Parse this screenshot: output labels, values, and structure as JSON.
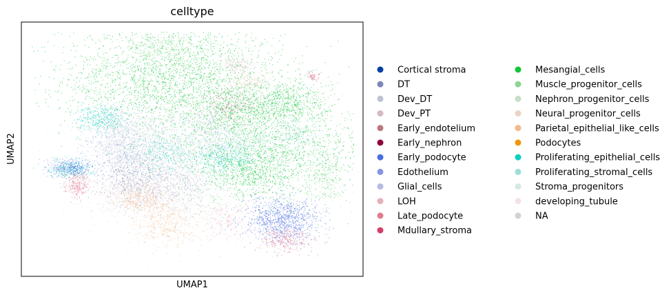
{
  "chart_data": {
    "type": "scatter",
    "title": "celltype",
    "xlabel": "UMAP1",
    "ylabel": "UMAP2",
    "ticks": "none",
    "grid": false,
    "legend_placement": "right, two columns",
    "legend": [
      {
        "name": "Cortical stroma",
        "color": "#023fa5"
      },
      {
        "name": "DT",
        "color": "#7d87b9"
      },
      {
        "name": "Dev_DT",
        "color": "#bec1d4"
      },
      {
        "name": "Dev_PT",
        "color": "#d6bcc0"
      },
      {
        "name": "Early_endotelium",
        "color": "#bb7784"
      },
      {
        "name": "Early_nephron",
        "color": "#8e063b"
      },
      {
        "name": "Early_podocyte",
        "color": "#4a6fe3"
      },
      {
        "name": "Edothelium",
        "color": "#8595e1"
      },
      {
        "name": "Glial_cells",
        "color": "#b5bbe3"
      },
      {
        "name": "LOH",
        "color": "#e6afb9"
      },
      {
        "name": "Late_podocyte",
        "color": "#e07b91"
      },
      {
        "name": "Mdullary_stroma",
        "color": "#d33f6a"
      },
      {
        "name": "Mesangial_cells",
        "color": "#11c638"
      },
      {
        "name": "Muscle_progenitor_cells",
        "color": "#8dd593"
      },
      {
        "name": "Nephron_progenitor_cells",
        "color": "#c6dec7"
      },
      {
        "name": "Neural_progenitor_cells",
        "color": "#ead3c6"
      },
      {
        "name": "Parietal_epithelial_like_cells",
        "color": "#f0b98d"
      },
      {
        "name": "Podocytes",
        "color": "#ef9708"
      },
      {
        "name": "Proliferating_epithelial_cells",
        "color": "#0fcfc0"
      },
      {
        "name": "Proliferating_stromal_cells",
        "color": "#9cded6"
      },
      {
        "name": "Stroma_progenitors",
        "color": "#d5eae7"
      },
      {
        "name": "developing_tubule",
        "color": "#f3e1eb"
      },
      {
        "name": "NA",
        "color": "#d3d3d3"
      }
    ],
    "clusters": [
      {
        "category": "Mesangial_cells",
        "x": 0.44,
        "y": 0.8,
        "sx": 0.17,
        "sy": 0.12,
        "n": 2600
      },
      {
        "category": "Mesangial_cells",
        "x": 0.74,
        "y": 0.49,
        "sx": 0.17,
        "sy": 0.1,
        "n": 1800
      },
      {
        "category": "Mesangial_cells",
        "x": 0.78,
        "y": 0.7,
        "sx": 0.07,
        "sy": 0.05,
        "n": 700
      },
      {
        "category": "Mesangial_cells",
        "x": 0.62,
        "y": 0.66,
        "sx": 0.06,
        "sy": 0.05,
        "n": 400
      },
      {
        "category": "Mesangial_cells",
        "x": 0.68,
        "y": 0.4,
        "sx": 0.07,
        "sy": 0.05,
        "n": 500
      },
      {
        "category": "Muscle_progenitor_cells",
        "x": 0.4,
        "y": 0.93,
        "sx": 0.06,
        "sy": 0.04,
        "n": 300
      },
      {
        "category": "Muscle_progenitor_cells",
        "x": 0.91,
        "y": 0.38,
        "sx": 0.03,
        "sy": 0.05,
        "n": 250
      },
      {
        "category": "Proliferating_epithelial_cells",
        "x": 0.22,
        "y": 0.63,
        "sx": 0.04,
        "sy": 0.03,
        "n": 350
      },
      {
        "category": "Proliferating_epithelial_cells",
        "x": 0.12,
        "y": 0.42,
        "sx": 0.035,
        "sy": 0.02,
        "n": 250
      },
      {
        "category": "Proliferating_epithelial_cells",
        "x": 0.42,
        "y": 0.49,
        "sx": 0.05,
        "sy": 0.05,
        "n": 300
      },
      {
        "category": "Proliferating_epithelial_cells",
        "x": 0.6,
        "y": 0.46,
        "sx": 0.05,
        "sy": 0.03,
        "n": 300
      },
      {
        "category": "Proliferating_stromal_cells",
        "x": 0.64,
        "y": 0.52,
        "sx": 0.05,
        "sy": 0.04,
        "n": 350
      },
      {
        "category": "Proliferating_stromal_cells",
        "x": 0.82,
        "y": 0.56,
        "sx": 0.05,
        "sy": 0.04,
        "n": 300
      },
      {
        "category": "Dev_DT",
        "x": 0.36,
        "y": 0.45,
        "sx": 0.07,
        "sy": 0.1,
        "n": 1200
      },
      {
        "category": "Dev_DT",
        "x": 0.48,
        "y": 0.35,
        "sx": 0.05,
        "sy": 0.06,
        "n": 500
      },
      {
        "category": "Glial_cells",
        "x": 0.27,
        "y": 0.53,
        "sx": 0.05,
        "sy": 0.07,
        "n": 700
      },
      {
        "category": "Glial_cells",
        "x": 0.55,
        "y": 0.58,
        "sx": 0.05,
        "sy": 0.05,
        "n": 300
      },
      {
        "category": "Dev_PT",
        "x": 0.34,
        "y": 0.32,
        "sx": 0.06,
        "sy": 0.04,
        "n": 500
      },
      {
        "category": "Dev_PT",
        "x": 0.64,
        "y": 0.86,
        "sx": 0.025,
        "sy": 0.02,
        "n": 150
      },
      {
        "category": "Parietal_epithelial_like_cells",
        "x": 0.42,
        "y": 0.18,
        "sx": 0.05,
        "sy": 0.05,
        "n": 400
      },
      {
        "category": "Parietal_epithelial_like_cells",
        "x": 0.33,
        "y": 0.28,
        "sx": 0.05,
        "sy": 0.03,
        "n": 300
      },
      {
        "category": "Early_podocyte",
        "x": 0.78,
        "y": 0.2,
        "sx": 0.06,
        "sy": 0.05,
        "n": 1000
      },
      {
        "category": "Early_podocyte",
        "x": 0.14,
        "y": 0.42,
        "sx": 0.025,
        "sy": 0.02,
        "n": 200
      },
      {
        "category": "Late_podocyte",
        "x": 0.79,
        "y": 0.12,
        "sx": 0.04,
        "sy": 0.025,
        "n": 300
      },
      {
        "category": "Late_podocyte",
        "x": 0.14,
        "y": 0.35,
        "sx": 0.02,
        "sy": 0.025,
        "n": 250
      },
      {
        "category": "Edothelium",
        "x": 0.09,
        "y": 0.42,
        "sx": 0.02,
        "sy": 0.02,
        "n": 150
      },
      {
        "category": "Early_endotelium",
        "x": 0.61,
        "y": 0.69,
        "sx": 0.04,
        "sy": 0.04,
        "n": 200
      },
      {
        "category": "DT",
        "x": 0.3,
        "y": 0.4,
        "sx": 0.05,
        "sy": 0.05,
        "n": 300
      },
      {
        "category": "LOH",
        "x": 0.6,
        "y": 0.2,
        "sx": 0.04,
        "sy": 0.04,
        "n": 200
      },
      {
        "category": "Neural_progenitor_cells",
        "x": 0.68,
        "y": 0.79,
        "sx": 0.03,
        "sy": 0.02,
        "n": 200
      },
      {
        "category": "Nephron_progenitor_cells",
        "x": 0.5,
        "y": 0.6,
        "sx": 0.1,
        "sy": 0.1,
        "n": 400
      },
      {
        "category": "Mdullary_stroma",
        "x": 0.87,
        "y": 0.81,
        "sx": 0.01,
        "sy": 0.01,
        "n": 40
      },
      {
        "category": "NA",
        "x": 0.5,
        "y": 0.45,
        "sx": 0.2,
        "sy": 0.2,
        "n": 600
      }
    ]
  }
}
